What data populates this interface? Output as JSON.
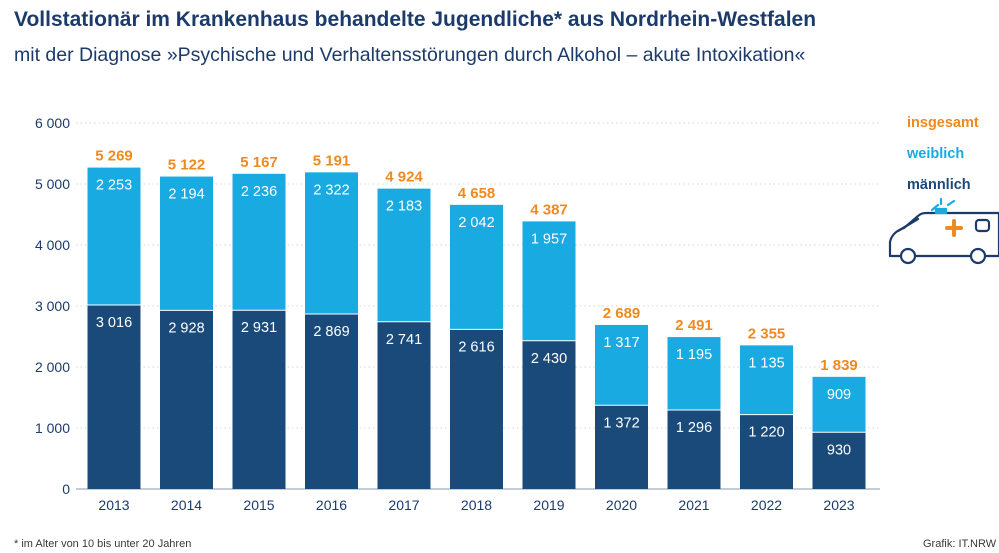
{
  "header": {
    "title": "Vollstationär im Krankenhaus behandelte Jugendliche* aus Nordrhein-Westfalen",
    "subtitle": "mit der Diagnose »Psychische und Verhaltensstörungen durch Alkohol – akute Intoxikation«"
  },
  "legend": {
    "total": "insgesamt",
    "female": "weiblich",
    "male": "männlich"
  },
  "footer": {
    "footnote": "* im Alter von 10 bis unter 20 Jahren",
    "credit": "Grafik: IT.NRW"
  },
  "colors": {
    "male": "#1a4a7a",
    "female": "#1aaae2",
    "total": "#f08a1e",
    "text": "#1c3b6b",
    "grid": "#cfd6de"
  },
  "icons": [
    "ambulance-icon"
  ],
  "chart_data": {
    "type": "bar",
    "stacked": true,
    "categories": [
      "2013",
      "2014",
      "2015",
      "2016",
      "2017",
      "2018",
      "2019",
      "2020",
      "2021",
      "2022",
      "2023"
    ],
    "series": [
      {
        "name": "männlich",
        "values": [
          3016,
          2928,
          2931,
          2869,
          2741,
          2616,
          2430,
          1372,
          1296,
          1220,
          930
        ]
      },
      {
        "name": "weiblich",
        "values": [
          2253,
          2194,
          2236,
          2322,
          2183,
          2042,
          1957,
          1317,
          1195,
          1135,
          909
        ]
      }
    ],
    "totals": [
      5269,
      5122,
      5167,
      5191,
      4924,
      4658,
      4387,
      2689,
      2491,
      2355,
      1839
    ],
    "value_labels": {
      "male": [
        "3 016",
        "2 928",
        "2 931",
        "2 869",
        "2 741",
        "2 616",
        "2 430",
        "1 372",
        "1 296",
        "1 220",
        "930"
      ],
      "female": [
        "2 253",
        "2 194",
        "2 236",
        "2 322",
        "2 183",
        "2 042",
        "1 957",
        "1 317",
        "1 195",
        "1 135",
        "909"
      ],
      "total": [
        "5 269",
        "5 122",
        "5 167",
        "5 191",
        "4 924",
        "4 658",
        "4 387",
        "2 689",
        "2 491",
        "2 355",
        "1 839"
      ]
    },
    "yticks": [
      0,
      1000,
      2000,
      3000,
      4000,
      5000,
      6000
    ],
    "ytick_labels": [
      "0",
      "1 000",
      "2 000",
      "3 000",
      "4 000",
      "5 000",
      "6 000"
    ],
    "ylim": [
      0,
      6000
    ],
    "grid": true,
    "legend_position": "top-right"
  }
}
